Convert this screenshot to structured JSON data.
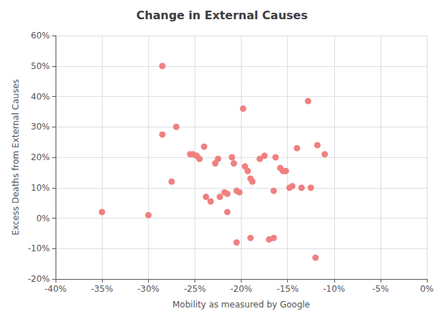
{
  "chart_data": {
    "type": "scatter",
    "title": "Change in External Causes",
    "xlabel": "Mobility as measured by Google",
    "ylabel": "Excess Deaths from External Causes",
    "x": [
      -0.35,
      -0.3,
      -0.285,
      -0.275,
      -0.27,
      -0.255,
      -0.252,
      -0.248,
      -0.245,
      -0.24,
      -0.238,
      -0.233,
      -0.228,
      -0.225,
      -0.223,
      -0.218,
      -0.215,
      -0.21,
      -0.208,
      -0.205,
      -0.202,
      -0.198,
      -0.196,
      -0.193,
      -0.19,
      -0.188,
      -0.18,
      -0.175,
      -0.17,
      -0.165,
      -0.163,
      -0.158,
      -0.155,
      -0.152,
      -0.148,
      -0.145,
      -0.14,
      -0.135,
      -0.128,
      -0.125,
      -0.118,
      -0.285,
      -0.215,
      -0.165,
      -0.205,
      -0.19,
      -0.12,
      -0.11
    ],
    "values": [
      0.02,
      0.01,
      0.275,
      0.12,
      0.3,
      0.21,
      0.21,
      0.205,
      0.195,
      0.235,
      0.07,
      0.055,
      0.18,
      0.195,
      0.07,
      0.085,
      0.08,
      0.2,
      0.18,
      0.09,
      0.085,
      0.36,
      0.17,
      0.155,
      0.13,
      0.12,
      0.195,
      0.205,
      -0.07,
      0.09,
      0.2,
      0.165,
      0.155,
      0.155,
      0.1,
      0.105,
      0.23,
      0.1,
      0.385,
      0.1,
      0.24,
      0.5,
      0.02,
      -0.065,
      -0.08,
      -0.065,
      -0.13,
      0.21
    ],
    "color": "#f08080",
    "xlim": [
      -0.4,
      0.0
    ],
    "ylim": [
      -0.2,
      0.6
    ],
    "xticks": [
      {
        "value": -0.4,
        "label": "-40%"
      },
      {
        "value": -0.35,
        "label": "-35%"
      },
      {
        "value": -0.3,
        "label": "-30%"
      },
      {
        "value": -0.25,
        "label": "-25%"
      },
      {
        "value": -0.2,
        "label": "-20%"
      },
      {
        "value": -0.15,
        "label": "-15%"
      },
      {
        "value": -0.1,
        "label": "-10%"
      },
      {
        "value": -0.05,
        "label": "-5%"
      },
      {
        "value": 0.0,
        "label": "0%"
      }
    ],
    "yticks": [
      {
        "value": -0.2,
        "label": "-20%"
      },
      {
        "value": -0.1,
        "label": "-10%"
      },
      {
        "value": 0.0,
        "label": "0%"
      },
      {
        "value": 0.1,
        "label": "10%"
      },
      {
        "value": 0.2,
        "label": "20%"
      },
      {
        "value": 0.3,
        "label": "30%"
      },
      {
        "value": 0.4,
        "label": "40%"
      },
      {
        "value": 0.5,
        "label": "50%"
      },
      {
        "value": 0.6,
        "label": "60%"
      }
    ],
    "grid": true
  }
}
